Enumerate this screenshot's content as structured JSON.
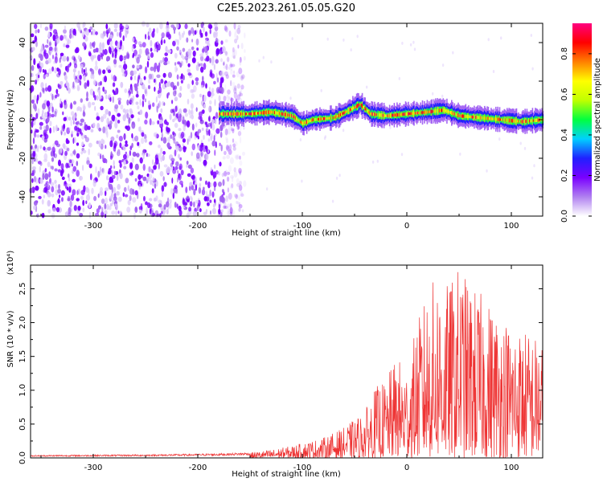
{
  "chart_data": [
    {
      "type": "heatmap",
      "title": "C2E5.2023.261.05.05.G20",
      "xlabel": "Height of straight line (km)",
      "ylabel": "Frequency (Hz)",
      "xlim": [
        -360,
        130
      ],
      "ylim": [
        -50,
        50
      ],
      "xticks": [
        -300,
        -200,
        -100,
        0,
        100
      ],
      "yticks": [
        -40,
        -20,
        0,
        20,
        40
      ],
      "xtick_labels": [
        "-300",
        "-200",
        "-100",
        "0",
        "100"
      ],
      "ytick_labels": [
        "-40",
        "-20",
        "0",
        "20",
        "40"
      ],
      "colorbar": {
        "label": "Normalized spectral amplitude",
        "range": [
          0.0,
          0.95
        ],
        "ticks": [
          0.0,
          0.2,
          0.4,
          0.6,
          0.8
        ],
        "tick_labels": [
          "0.0",
          "0.2",
          "0.4",
          "0.6",
          "0.8"
        ],
        "colormap": "rainbow",
        "stops": [
          "#ffffff",
          "#b080f0",
          "#7a00ff",
          "#2020ff",
          "#00d0ff",
          "#00ff40",
          "#c0ff00",
          "#ffff00",
          "#ff8000",
          "#ff0000",
          "#ff0080"
        ]
      },
      "features": {
        "noise_region_x": [
          -360,
          -175
        ],
        "noise_amplitude": 0.05,
        "signal_start_x": -180,
        "signal_center_freq": [
          [
            -180,
            3
          ],
          [
            -150,
            3
          ],
          [
            -130,
            4
          ],
          [
            -110,
            2
          ],
          [
            -100,
            -2
          ],
          [
            -90,
            0
          ],
          [
            -70,
            1
          ],
          [
            -55,
            5
          ],
          [
            -45,
            8
          ],
          [
            -35,
            3
          ],
          [
            -20,
            2
          ],
          [
            0,
            3
          ],
          [
            20,
            4
          ],
          [
            35,
            5
          ],
          [
            50,
            2
          ],
          [
            70,
            1
          ],
          [
            90,
            0
          ],
          [
            110,
            -1
          ],
          [
            130,
            0
          ]
        ],
        "signal_halfwidth_hz": 3,
        "signal_peak_amplitude": 0.85
      }
    },
    {
      "type": "line",
      "xlabel": "Height of straight line (km)",
      "ylabel": "SNR (10 * v/v)",
      "yscale_label": "(x10⁴)",
      "xlim": [
        -360,
        130
      ],
      "ylim": [
        0,
        2.85
      ],
      "xticks": [
        -300,
        -200,
        -100,
        0,
        100
      ],
      "yticks": [
        0.0,
        0.5,
        1.0,
        1.5,
        2.0,
        2.5
      ],
      "xtick_labels": [
        "-300",
        "-200",
        "-100",
        "0",
        "100"
      ],
      "ytick_labels": [
        "0.0",
        "0.5",
        "1.0",
        "1.5",
        "2.0",
        "2.5"
      ],
      "color": "#ee3333",
      "envelope": {
        "x": [
          -360,
          -250,
          -200,
          -170,
          -150,
          -130,
          -110,
          -100,
          -80,
          -60,
          -40,
          -30,
          -20,
          -10,
          0,
          10,
          20,
          30,
          40,
          50,
          60,
          80,
          100,
          120,
          130
        ],
        "y": [
          0.04,
          0.05,
          0.06,
          0.07,
          0.08,
          0.12,
          0.18,
          0.22,
          0.3,
          0.45,
          0.7,
          1.05,
          1.15,
          1.5,
          1.35,
          2.0,
          2.5,
          2.75,
          2.55,
          2.85,
          2.6,
          2.3,
          2.0,
          1.85,
          1.75
        ]
      }
    }
  ]
}
